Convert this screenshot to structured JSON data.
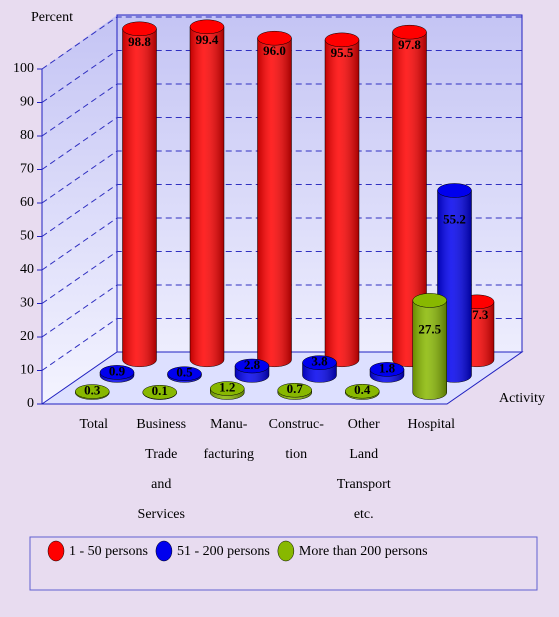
{
  "chart_data": {
    "type": "bar3d",
    "y_label": "Percent",
    "x_label": "Activity",
    "categories": [
      [
        "Total"
      ],
      [
        "Business",
        "Trade",
        "and",
        "Services"
      ],
      [
        "Manu-",
        "facturing"
      ],
      [
        "Construc-",
        "tion"
      ],
      [
        "Other",
        "Land",
        "Transport",
        "etc."
      ],
      [
        "Hospital"
      ]
    ],
    "series": [
      {
        "name": "1 - 50 persons",
        "color": "#ff0000",
        "values": [
          98.8,
          99.4,
          96.0,
          95.5,
          97.8,
          17.3
        ],
        "value_labels": [
          "98.8",
          "99.4",
          "96.0",
          "95.5",
          "97.8",
          "17.3"
        ]
      },
      {
        "name": "51 - 200 persons",
        "color": "#0000ee",
        "values": [
          0.9,
          0.5,
          2.8,
          3.8,
          1.8,
          55.2
        ]
      },
      {
        "name": "More than 200 persons",
        "color": "#88b800",
        "values": [
          0.3,
          0.1,
          1.2,
          0.7,
          0.4,
          27.5
        ]
      }
    ],
    "ylim": [
      0,
      100
    ],
    "yticks": [
      0,
      10,
      20,
      30,
      40,
      50,
      60,
      70,
      80,
      90,
      100
    ],
    "grid": true
  }
}
